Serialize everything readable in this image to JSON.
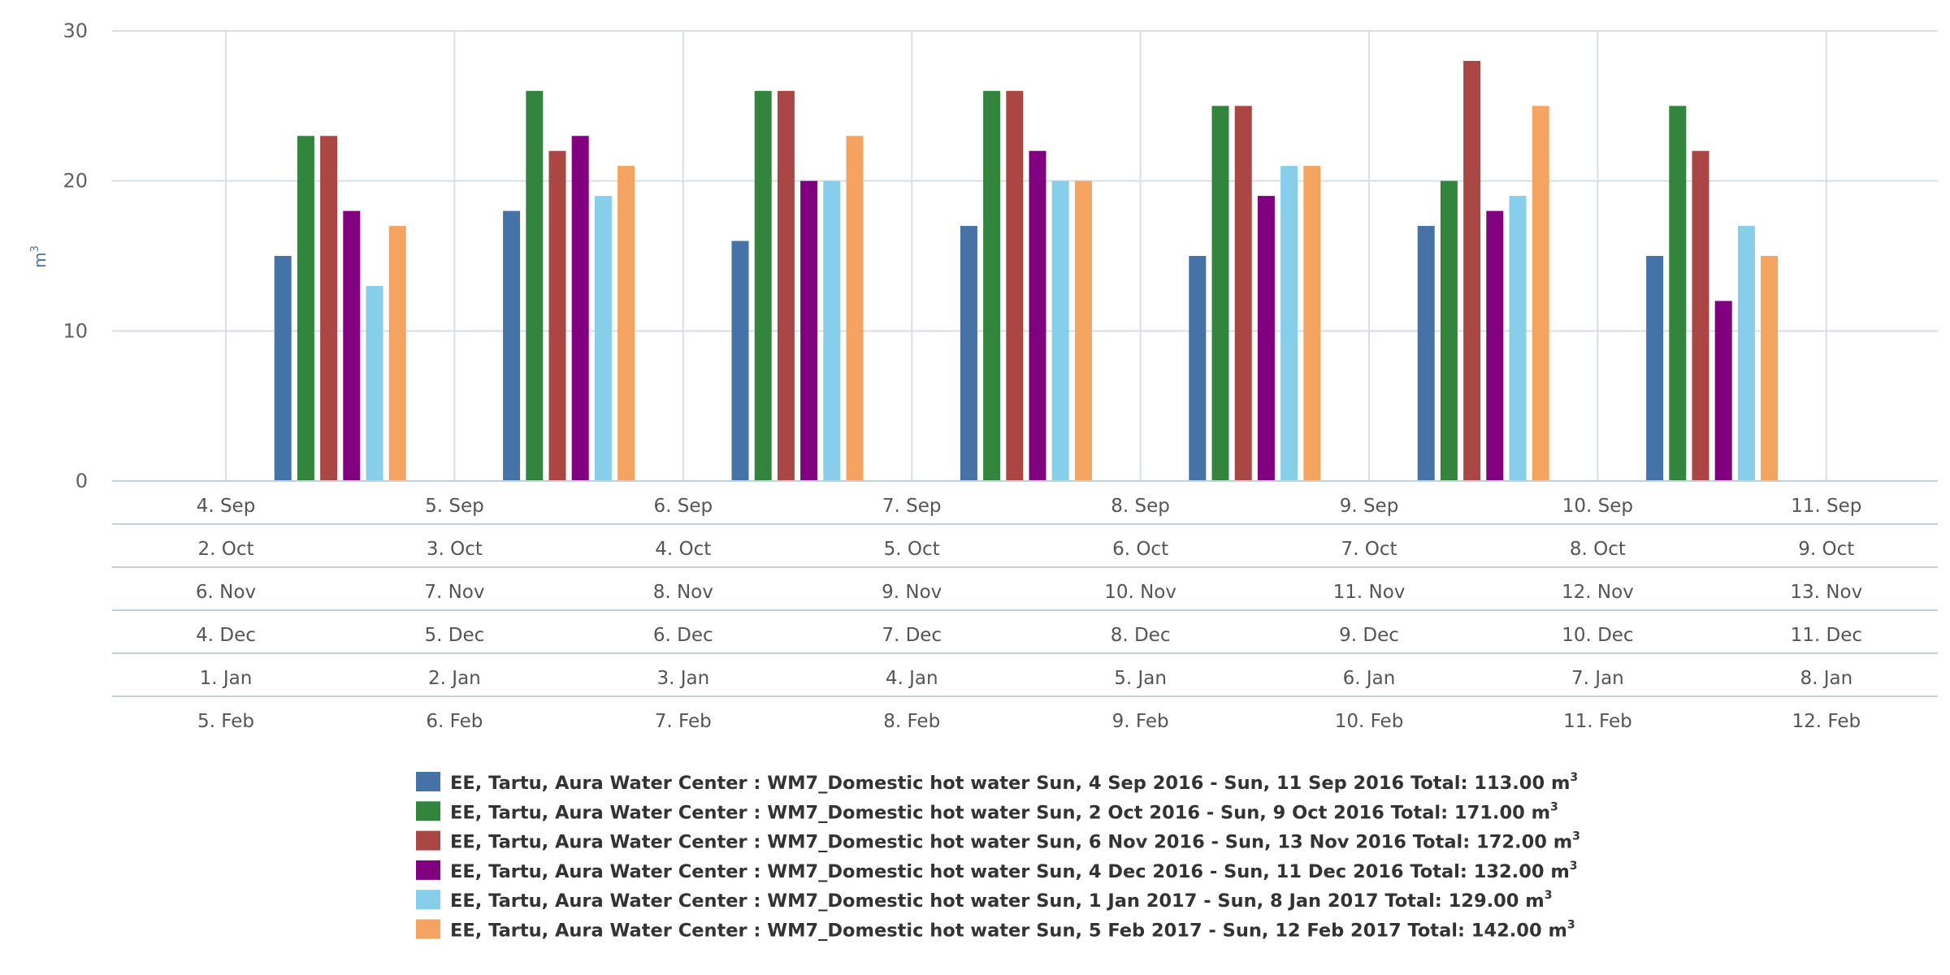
{
  "chart_data": {
    "type": "bar",
    "ylabel": "m",
    "ylabel_sup": "3",
    "ylim": [
      0,
      30
    ],
    "yticks": [
      "0",
      "10",
      "20",
      "30"
    ],
    "grid": true,
    "legend_position": "bottom-center",
    "category_rows": [
      [
        "4. Sep",
        "5. Sep",
        "6. Sep",
        "7. Sep",
        "8. Sep",
        "9. Sep",
        "10. Sep",
        "11. Sep"
      ],
      [
        "2. Oct",
        "3. Oct",
        "4. Oct",
        "5. Oct",
        "6. Oct",
        "7. Oct",
        "8. Oct",
        "9. Oct"
      ],
      [
        "6. Nov",
        "7. Nov",
        "8. Nov",
        "9. Nov",
        "10. Nov",
        "11. Nov",
        "12. Nov",
        "13. Nov"
      ],
      [
        "4. Dec",
        "5. Dec",
        "6. Dec",
        "7. Dec",
        "8. Dec",
        "9. Dec",
        "10. Dec",
        "11. Dec"
      ],
      [
        "1. Jan",
        "2. Jan",
        "3. Jan",
        "4. Jan",
        "5. Jan",
        "6. Jan",
        "7. Jan",
        "8. Jan"
      ],
      [
        "5. Feb",
        "6. Feb",
        "7. Feb",
        "8. Feb",
        "9. Feb",
        "10. Feb",
        "11. Feb",
        "12. Feb"
      ]
    ],
    "series": [
      {
        "name": "EE, Tartu, Aura Water Center : WM7_Domestic hot water Sun, 4 Sep 2016 - Sun, 11 Sep 2016 Total: 113.00 m",
        "unit_sup": "3",
        "color": "#4572a7",
        "values": [
          15,
          18,
          16,
          17,
          15,
          17,
          15
        ]
      },
      {
        "name": "EE, Tartu, Aura Water Center : WM7_Domestic hot water Sun, 2 Oct 2016 - Sun, 9 Oct 2016 Total: 171.00 m",
        "unit_sup": "3",
        "color": "#33853e",
        "values": [
          23,
          26,
          26,
          26,
          25,
          20,
          25
        ]
      },
      {
        "name": "EE, Tartu, Aura Water Center : WM7_Domestic hot water Sun, 6 Nov 2016 - Sun, 13 Nov 2016 Total: 172.00 m",
        "unit_sup": "3",
        "color": "#aa4643",
        "values": [
          23,
          22,
          26,
          26,
          25,
          28,
          22
        ]
      },
      {
        "name": "EE, Tartu, Aura Water Center : WM7_Domestic hot water Sun, 4 Dec 2016 - Sun, 11 Dec 2016 Total: 132.00 m",
        "unit_sup": "3",
        "color": "#800080",
        "values": [
          18,
          23,
          20,
          22,
          19,
          18,
          12
        ]
      },
      {
        "name": "EE, Tartu, Aura Water Center : WM7_Domestic hot water Sun, 1 Jan 2017 - Sun, 8 Jan 2017 Total: 129.00 m",
        "unit_sup": "3",
        "color": "#87ceeb",
        "values": [
          13,
          19,
          20,
          20,
          21,
          19,
          17
        ]
      },
      {
        "name": "EE, Tartu, Aura Water Center : WM7_Domestic hot water Sun, 5 Feb 2017 - Sun, 12 Feb 2017 Total: 142.00 m",
        "unit_sup": "3",
        "color": "#f4a460",
        "values": [
          17,
          21,
          23,
          20,
          21,
          25,
          15
        ]
      }
    ],
    "colors": {
      "grid": "#d8dee8",
      "axis": "#c0d0e0",
      "tick_text": "#606060",
      "ylabel": "#4572a7"
    }
  }
}
